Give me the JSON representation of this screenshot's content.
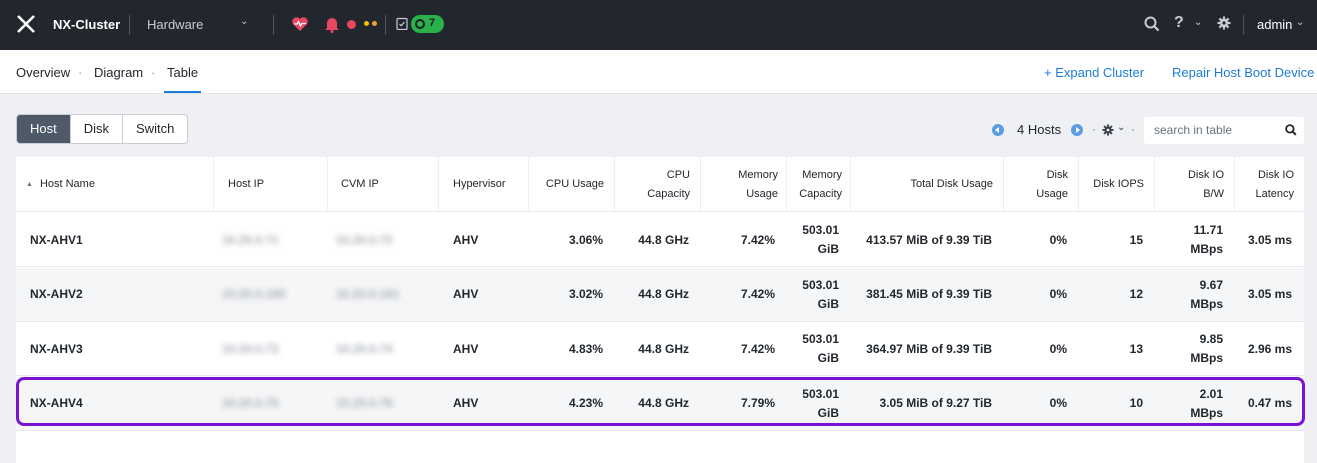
{
  "topbar": {
    "cluster_name": "NX-Cluster",
    "section": "Hardware",
    "task_count": "7",
    "user": "admin",
    "help": "?",
    "caret": "⌄",
    "alert_colors": {
      "critical": "#e8475f",
      "warning": "#f2c200",
      "info": "#f0a030"
    }
  },
  "subnav": {
    "tabs": [
      "Overview",
      "Diagram",
      "Table"
    ],
    "separator": "·",
    "active_tab": "Table",
    "expand_cluster": "+ Expand Cluster",
    "repair": "Repair Host Boot Device"
  },
  "view_toggle": [
    "Host",
    "Disk",
    "Switch"
  ],
  "pager": {
    "count_label": "4 Hosts",
    "dot": "·",
    "settings_caret": "⌄"
  },
  "search": {
    "placeholder": "search in table"
  },
  "table": {
    "sort_indicator": "▲",
    "headers": {
      "host_name": "Host Name",
      "host_ip": "Host IP",
      "cvm_ip": "CVM IP",
      "hypervisor": "Hypervisor",
      "cpu_usage": "CPU Usage",
      "cpu_capacity": "CPU Capacity",
      "memory_usage": "Memory Usage",
      "memory_capacity": "Memory Capacity",
      "total_disk_usage": "Total Disk Usage",
      "disk_usage": "Disk Usage",
      "disk_iops": "Disk IOPS",
      "disk_io_bw": "Disk IO B/W",
      "disk_io_latency": "Disk IO Latency"
    },
    "rows": [
      {
        "host_name": "NX-AHV1",
        "host_ip": "10.20.0.71",
        "cvm_ip": "10.20.0.72",
        "hypervisor": "AHV",
        "cpu_usage": "3.06%",
        "cpu_capacity": "44.8 GHz",
        "memory_usage": "7.42%",
        "memory_capacity": "503.01 GiB",
        "total_disk_usage": "413.57 MiB of 9.39 TiB",
        "disk_usage": "0%",
        "disk_iops": "15",
        "disk_io_bw": "11.71 MBps",
        "disk_io_latency": "3.05 ms"
      },
      {
        "host_name": "NX-AHV2",
        "host_ip": "10.20.0.180",
        "cvm_ip": "10.20.0.181",
        "hypervisor": "AHV",
        "cpu_usage": "3.02%",
        "cpu_capacity": "44.8 GHz",
        "memory_usage": "7.42%",
        "memory_capacity": "503.01 GiB",
        "total_disk_usage": "381.45 MiB of 9.39 TiB",
        "disk_usage": "0%",
        "disk_iops": "12",
        "disk_io_bw": "9.67 MBps",
        "disk_io_latency": "3.05 ms"
      },
      {
        "host_name": "NX-AHV3",
        "host_ip": "10.20.0.73",
        "cvm_ip": "10.20.0.74",
        "hypervisor": "AHV",
        "cpu_usage": "4.83%",
        "cpu_capacity": "44.8 GHz",
        "memory_usage": "7.42%",
        "memory_capacity": "503.01 GiB",
        "total_disk_usage": "364.97 MiB of 9.39 TiB",
        "disk_usage": "0%",
        "disk_iops": "13",
        "disk_io_bw": "9.85 MBps",
        "disk_io_latency": "2.96 ms"
      },
      {
        "host_name": "NX-AHV4",
        "host_ip": "10.20.0.75",
        "cvm_ip": "10.20.0.76",
        "hypervisor": "AHV",
        "cpu_usage": "4.23%",
        "cpu_capacity": "44.8 GHz",
        "memory_usage": "7.79%",
        "memory_capacity": "503.01 GiB",
        "total_disk_usage": "3.05 MiB of 9.27 TiB",
        "disk_usage": "0%",
        "disk_iops": "10",
        "disk_io_bw": "2.01 MBps",
        "disk_io_latency": "0.47 ms"
      }
    ]
  }
}
